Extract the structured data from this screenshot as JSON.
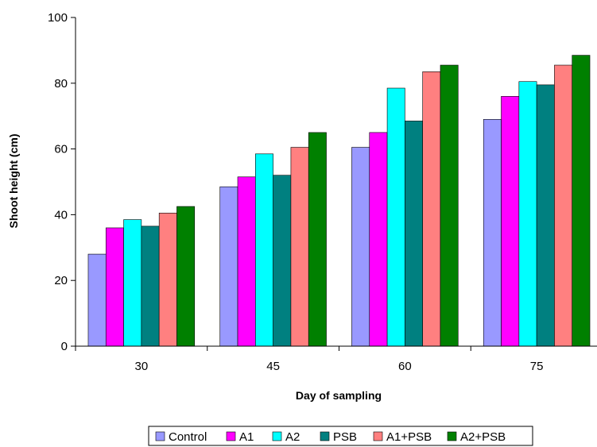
{
  "chart_data": {
    "type": "bar",
    "title": "",
    "xlabel": "Day of sampling",
    "ylabel": "Shoot height (cm)",
    "categories": [
      "30",
      "45",
      "60",
      "75"
    ],
    "ylim": [
      0,
      100
    ],
    "yticks": [
      "0",
      "20",
      "40",
      "60",
      "80",
      "100"
    ],
    "grid": false,
    "legend_position": "bottom",
    "series": [
      {
        "name": "Control",
        "color": "#9999ff",
        "values": [
          28,
          48.5,
          60.5,
          69
        ]
      },
      {
        "name": "A1",
        "color": "#ff00ff",
        "values": [
          36,
          51.5,
          65,
          76
        ]
      },
      {
        "name": "A2",
        "color": "#00ffff",
        "values": [
          38.5,
          58.5,
          78.5,
          80.5
        ]
      },
      {
        "name": "PSB",
        "color": "#008080",
        "values": [
          36.5,
          52,
          68.5,
          79.5
        ]
      },
      {
        "name": "A1+PSB",
        "color": "#ff8080",
        "values": [
          40.5,
          60.5,
          83.5,
          85.5
        ]
      },
      {
        "name": "A2+PSB",
        "color": "#008000",
        "values": [
          42.5,
          65,
          85.5,
          88.5
        ]
      }
    ]
  }
}
